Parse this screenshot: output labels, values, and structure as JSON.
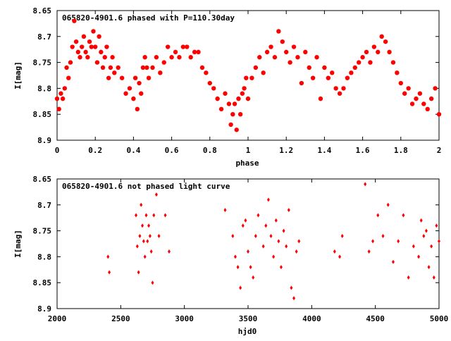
{
  "chart_data": [
    {
      "type": "scatter",
      "title": "065820-4901.6 phased with P=110.30day",
      "xlabel": "phase",
      "ylabel": "I[mag]",
      "xlim": [
        0,
        2
      ],
      "ylim": [
        8.65,
        8.9
      ],
      "y_inverted": true,
      "x_ticks": [
        "0",
        "0.2",
        "0.4",
        "0.6",
        "0.8",
        "1",
        "1.2",
        "1.4",
        "1.6",
        "1.8",
        "2"
      ],
      "y_ticks": [
        "8.65",
        "8.7",
        "8.75",
        "8.8",
        "8.85",
        "8.9"
      ],
      "marker": "filled-circle",
      "grid": false,
      "color": "#ff0000",
      "series": [
        {
          "x": [
            0.0,
            0.01,
            0.02,
            0.03,
            0.04,
            0.05,
            0.06,
            0.07,
            0.08,
            0.09,
            0.1,
            0.11,
            0.12,
            0.13,
            0.14,
            0.15,
            0.16,
            0.17,
            0.18,
            0.19,
            0.2,
            0.21,
            0.22,
            0.23,
            0.24,
            0.25,
            0.26,
            0.27,
            0.28,
            0.29,
            0.3,
            0.32,
            0.34,
            0.36,
            0.38,
            0.4,
            0.41,
            0.42,
            0.43,
            0.44,
            0.45,
            0.46,
            0.47,
            0.48,
            0.5,
            0.52,
            0.54,
            0.56,
            0.58,
            0.6,
            0.62,
            0.64,
            0.66,
            0.68,
            0.7,
            0.72,
            0.74,
            0.76,
            0.78,
            0.8,
            0.82,
            0.84,
            0.86,
            0.88,
            0.9,
            0.91,
            0.92,
            0.93,
            0.94,
            0.95,
            0.96,
            0.97,
            0.98,
            0.99,
            1.0,
            1.02,
            1.04,
            1.06,
            1.08,
            1.1,
            1.12,
            1.14,
            1.16,
            1.18,
            1.2,
            1.22,
            1.24,
            1.26,
            1.28,
            1.3,
            1.32,
            1.34,
            1.36,
            1.38,
            1.4,
            1.42,
            1.44,
            1.46,
            1.48,
            1.5,
            1.52,
            1.54,
            1.56,
            1.58,
            1.6,
            1.62,
            1.64,
            1.66,
            1.68,
            1.7,
            1.72,
            1.74,
            1.76,
            1.78,
            1.8,
            1.82,
            1.84,
            1.86,
            1.88,
            1.9,
            1.92,
            1.94,
            1.96,
            1.98,
            2.0
          ],
          "y": [
            8.82,
            8.84,
            8.81,
            8.82,
            8.8,
            8.76,
            8.78,
            8.75,
            8.72,
            8.67,
            8.71,
            8.73,
            8.74,
            8.72,
            8.7,
            8.73,
            8.74,
            8.71,
            8.72,
            8.69,
            8.72,
            8.75,
            8.7,
            8.73,
            8.76,
            8.74,
            8.72,
            8.78,
            8.76,
            8.74,
            8.77,
            8.76,
            8.78,
            8.81,
            8.8,
            8.82,
            8.78,
            8.84,
            8.79,
            8.81,
            8.76,
            8.74,
            8.76,
            8.78,
            8.76,
            8.74,
            8.77,
            8.75,
            8.72,
            8.74,
            8.73,
            8.74,
            8.72,
            8.72,
            8.74,
            8.73,
            8.73,
            8.76,
            8.77,
            8.79,
            8.8,
            8.82,
            8.84,
            8.81,
            8.83,
            8.87,
            8.85,
            8.83,
            8.88,
            8.82,
            8.85,
            8.81,
            8.8,
            8.78,
            8.82,
            8.78,
            8.76,
            8.74,
            8.77,
            8.73,
            8.72,
            8.74,
            8.69,
            8.71,
            8.73,
            8.75,
            8.72,
            8.74,
            8.79,
            8.73,
            8.76,
            8.78,
            8.74,
            8.82,
            8.76,
            8.78,
            8.77,
            8.8,
            8.81,
            8.8,
            8.78,
            8.77,
            8.76,
            8.75,
            8.74,
            8.73,
            8.75,
            8.72,
            8.73,
            8.7,
            8.71,
            8.73,
            8.75,
            8.77,
            8.79,
            8.81,
            8.8,
            8.83,
            8.82,
            8.81,
            8.83,
            8.84,
            8.82,
            8.8,
            8.85
          ]
        }
      ]
    },
    {
      "type": "scatter",
      "title": "065820-4901.6 not phased light curve",
      "xlabel": "hjd0",
      "ylabel": "I[mag]",
      "xlim": [
        2000,
        5000
      ],
      "ylim": [
        8.65,
        8.9
      ],
      "y_inverted": true,
      "x_ticks": [
        "2000",
        "2500",
        "3000",
        "3500",
        "4000",
        "4500",
        "5000"
      ],
      "y_ticks": [
        "8.65",
        "8.7",
        "8.75",
        "8.8",
        "8.85",
        "8.9"
      ],
      "marker": "diamond",
      "grid": false,
      "color": "#ff0000",
      "series": [
        {
          "x": [
            2400,
            2410,
            2620,
            2630,
            2640,
            2650,
            2660,
            2670,
            2680,
            2690,
            2700,
            2710,
            2720,
            2730,
            2740,
            2750,
            2760,
            2780,
            2800,
            2850,
            2880,
            3320,
            3380,
            3400,
            3420,
            3440,
            3460,
            3480,
            3500,
            3520,
            3540,
            3560,
            3580,
            3620,
            3640,
            3660,
            3680,
            3700,
            3720,
            3740,
            3760,
            3780,
            3800,
            3820,
            3840,
            3860,
            3880,
            3900,
            4180,
            4220,
            4240,
            4420,
            4450,
            4480,
            4520,
            4560,
            4600,
            4640,
            4680,
            4720,
            4760,
            4800,
            4840,
            4860,
            4880,
            4900,
            4920,
            4940,
            4960,
            4980,
            5000
          ],
          "x_label_only": false,
          "y": [
            8.8,
            8.83,
            8.72,
            8.78,
            8.83,
            8.76,
            8.7,
            8.74,
            8.77,
            8.8,
            8.72,
            8.77,
            8.74,
            8.76,
            8.79,
            8.85,
            8.72,
            8.68,
            8.76,
            8.72,
            8.79,
            8.71,
            8.76,
            8.8,
            8.82,
            8.86,
            8.74,
            8.73,
            8.79,
            8.82,
            8.84,
            8.76,
            8.72,
            8.78,
            8.74,
            8.69,
            8.76,
            8.8,
            8.73,
            8.77,
            8.82,
            8.75,
            8.78,
            8.71,
            8.86,
            8.88,
            8.79,
            8.77,
            8.79,
            8.8,
            8.76,
            8.66,
            8.79,
            8.77,
            8.72,
            8.76,
            8.7,
            8.81,
            8.77,
            8.72,
            8.84,
            8.78,
            8.8,
            8.73,
            8.76,
            8.75,
            8.82,
            8.78,
            8.84,
            8.74,
            8.77
          ]
        }
      ]
    }
  ]
}
